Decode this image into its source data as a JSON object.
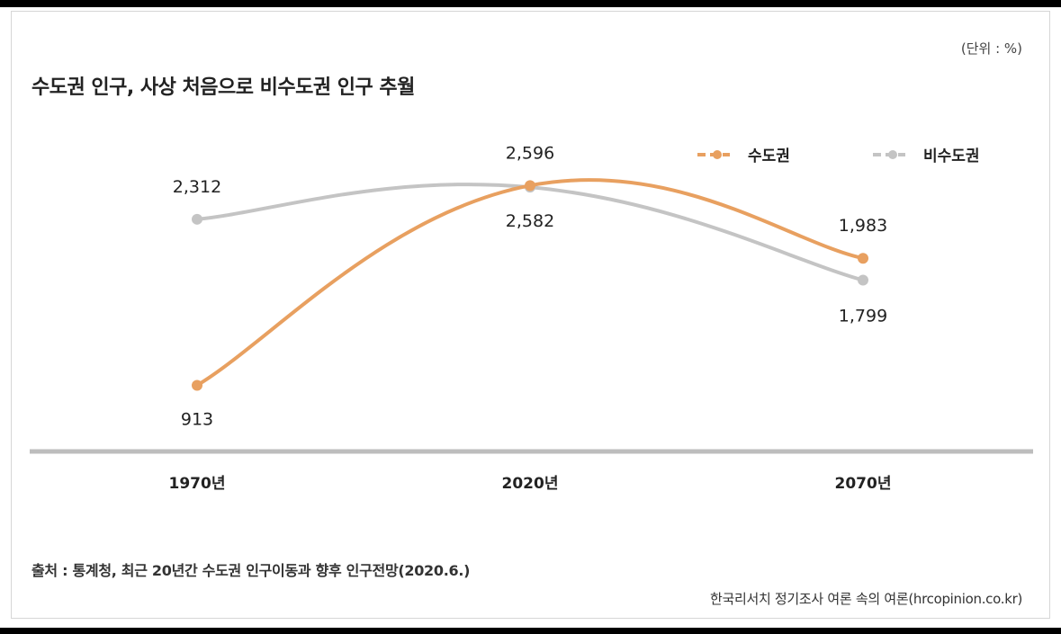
{
  "unit_label": "(단위 : %)",
  "source": "출처 : 통계청, 최근 20년간 수도권 인구이동과 향후 인구전망(2020.6.)",
  "credit": "한국리서치 정기조사 여론 속의 여론(hrcopinion.co.kr)",
  "chart_data": {
    "type": "line",
    "title": "수도권 인구, 사상 처음으로 비수도권 인구 추월",
    "categories": [
      "1970년",
      "2020년",
      "2070년"
    ],
    "series": [
      {
        "name": "수도권",
        "values": [
          913,
          2596,
          1983
        ],
        "labels": [
          "913",
          "2,596",
          "1,983"
        ],
        "color": "#e8a060"
      },
      {
        "name": "비수도권",
        "values": [
          2312,
          2582,
          1799
        ],
        "labels": [
          "2,312",
          "2,582",
          "1,799"
        ],
        "color": "#c4c4c4"
      }
    ],
    "xlabel": "",
    "ylabel": "",
    "ylim": [
      500,
      3000
    ],
    "grid": false,
    "legend": "top-right"
  }
}
